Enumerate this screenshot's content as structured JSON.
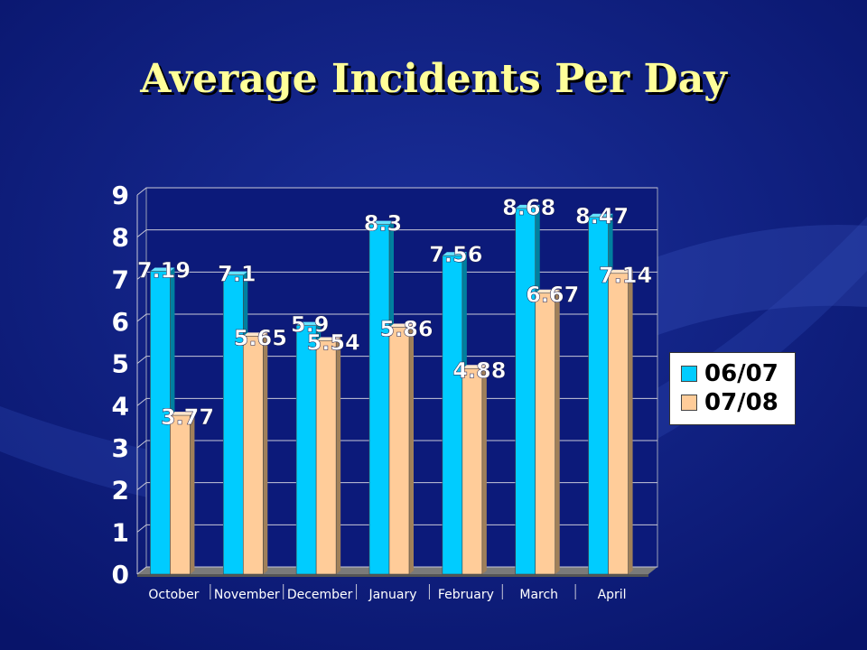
{
  "slide": {
    "title": "Average Incidents Per Day"
  },
  "colors": {
    "background": "#0c1a7a",
    "title": "#ffff99",
    "series_0607": "#00ccff",
    "series_0708": "#ffcc99",
    "text": "#ffffff"
  },
  "chart_data": {
    "type": "bar",
    "categories": [
      "October",
      "November",
      "December",
      "January",
      "February",
      "March",
      "April"
    ],
    "series": [
      {
        "name": "06/07",
        "values": [
          7.19,
          7.1,
          5.9,
          8.3,
          7.56,
          8.68,
          8.47
        ],
        "labels": [
          "7.19",
          "7.1",
          "5.9",
          "8.3",
          "7.56",
          "8.68",
          "8.47"
        ]
      },
      {
        "name": "07/08",
        "values": [
          3.77,
          5.65,
          5.54,
          5.86,
          4.88,
          6.67,
          7.14
        ],
        "labels": [
          "3.77",
          "5.65",
          "5.54",
          "5.86",
          "4.88",
          "6.67",
          "7.14"
        ]
      }
    ],
    "yticks": [
      "0",
      "1",
      "2",
      "3",
      "4",
      "5",
      "6",
      "7",
      "8",
      "9"
    ],
    "ylim": [
      0,
      9
    ],
    "grid": true,
    "legend": "right",
    "three_d": true
  }
}
